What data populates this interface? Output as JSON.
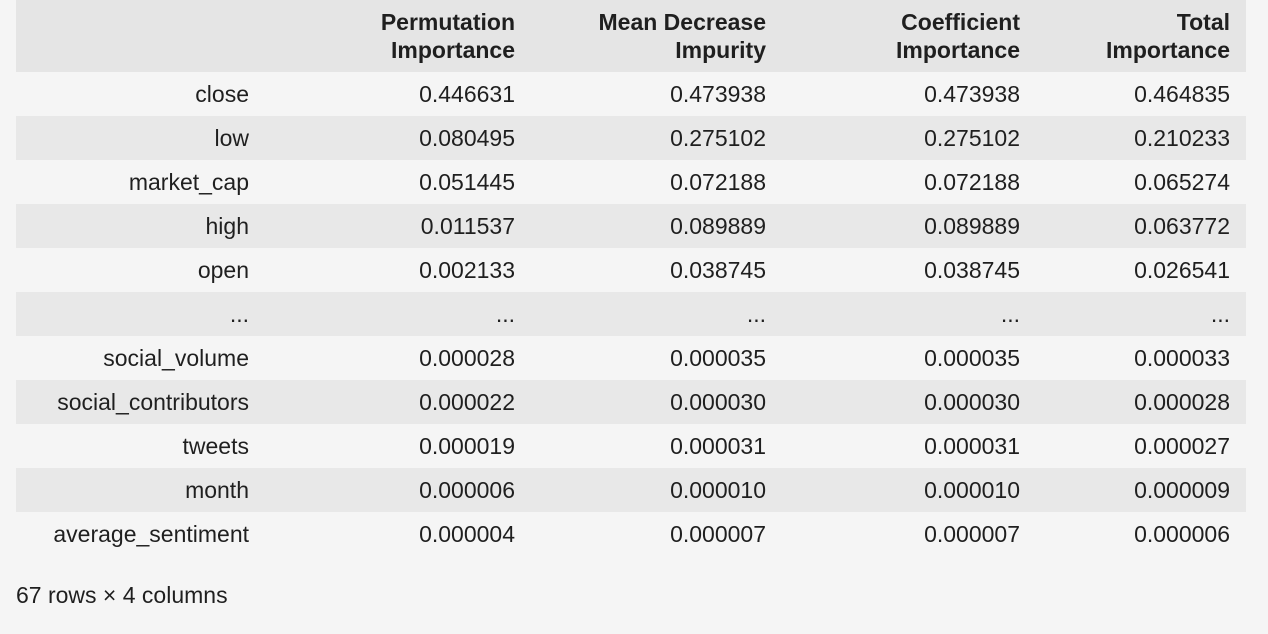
{
  "table": {
    "columns": [
      {
        "line1": "",
        "line2": ""
      },
      {
        "line1": "Permutation",
        "line2": "Importance"
      },
      {
        "line1": "Mean Decrease",
        "line2": "Impurity"
      },
      {
        "line1": "Coefficient",
        "line2": "Importance"
      },
      {
        "line1": "Total",
        "line2": "Importance"
      }
    ],
    "rows": [
      {
        "index": "close",
        "values": [
          "0.446631",
          "0.473938",
          "0.473938",
          "0.464835"
        ]
      },
      {
        "index": "low",
        "values": [
          "0.080495",
          "0.275102",
          "0.275102",
          "0.210233"
        ]
      },
      {
        "index": "market_cap",
        "values": [
          "0.051445",
          "0.072188",
          "0.072188",
          "0.065274"
        ]
      },
      {
        "index": "high",
        "values": [
          "0.011537",
          "0.089889",
          "0.089889",
          "0.063772"
        ]
      },
      {
        "index": "open",
        "values": [
          "0.002133",
          "0.038745",
          "0.038745",
          "0.026541"
        ]
      },
      {
        "index": "...",
        "values": [
          "...",
          "...",
          "...",
          "..."
        ]
      },
      {
        "index": "social_volume",
        "values": [
          "0.000028",
          "0.000035",
          "0.000035",
          "0.000033"
        ]
      },
      {
        "index": "social_contributors",
        "values": [
          "0.000022",
          "0.000030",
          "0.000030",
          "0.000028"
        ]
      },
      {
        "index": "tweets",
        "values": [
          "0.000019",
          "0.000031",
          "0.000031",
          "0.000027"
        ]
      },
      {
        "index": "month",
        "values": [
          "0.000006",
          "0.000010",
          "0.000010",
          "0.000009"
        ]
      },
      {
        "index": "average_sentiment",
        "values": [
          "0.000004",
          "0.000007",
          "0.000007",
          "0.000006"
        ]
      }
    ]
  },
  "footer": {
    "shape_text": "67 rows × 4 columns"
  }
}
